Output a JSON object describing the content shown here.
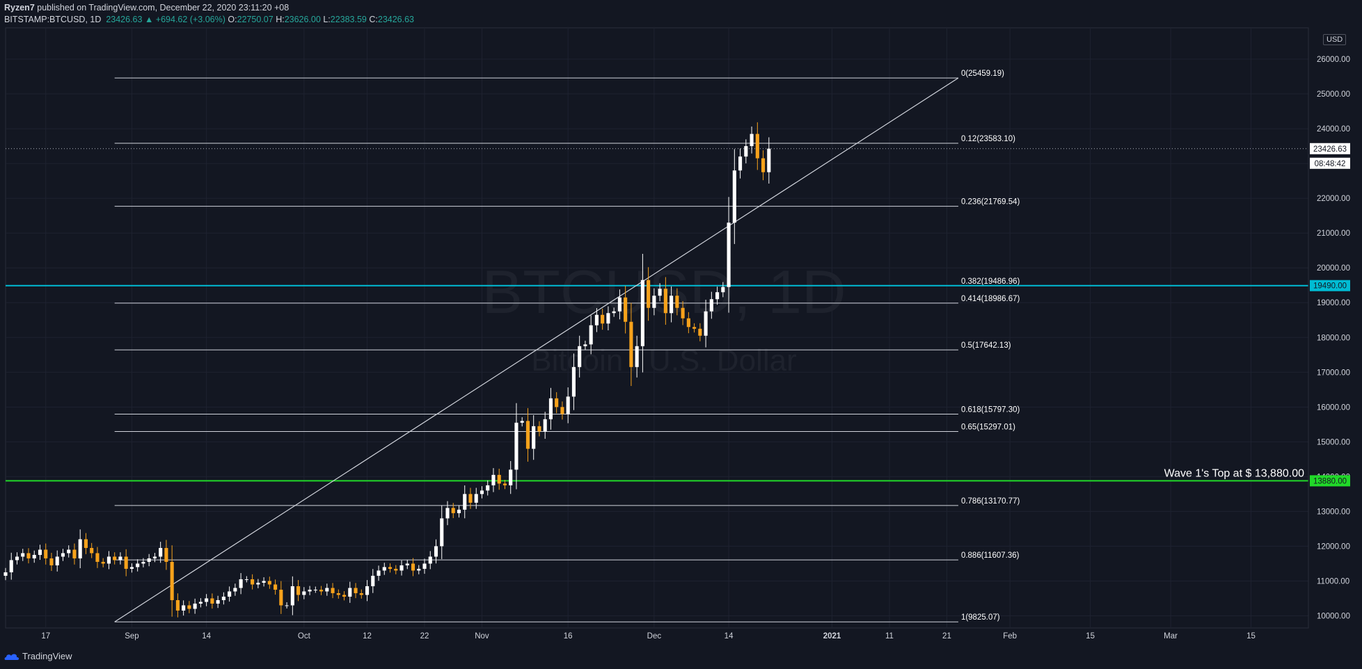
{
  "header": {
    "author": "Ryzen7",
    "published": " published on TradingView.com, December 22, 2020 23:11:20 +08",
    "symbol": "BITSTAMP:BTCUSD, 1D",
    "last": "23426.63",
    "change": "▲ +694.62 (+3.06%)",
    "o_label": "O:",
    "o": "22750.07",
    "h_label": "H:",
    "h": "23626.00",
    "l_label": "L:",
    "l": "22383.59",
    "c_label": "C:",
    "c": "23426.63"
  },
  "watermark": {
    "symbol": "BTCUSD, 1D",
    "name": "Bitcoin / U.S. Dollar"
  },
  "currency": "USD",
  "price_badges": {
    "last": "23426.63",
    "countdown": "08:48:42",
    "cyan_line": "19490.00",
    "green_line": "13880.00"
  },
  "annotation": "Wave 1's Top at $ 13,880.00",
  "footer": {
    "brand": "TradingView"
  },
  "colors": {
    "bg": "#131722",
    "up": "#ffffff",
    "down": "#f7a21b",
    "cyan": "#00bcd4",
    "green": "#21d929",
    "fib": "#d1d4dc"
  },
  "chart_data": {
    "type": "candlestick",
    "interval": "1D",
    "y_axis": {
      "ticks": [
        10000,
        11000,
        12000,
        13000,
        14000,
        15000,
        16000,
        17000,
        18000,
        19000,
        20000,
        21000,
        22000,
        23000,
        24000,
        25000,
        26000
      ],
      "tick_labels": [
        "10000.00",
        "11000.00",
        "12000.00",
        "13000.00",
        "14000.00",
        "15000.00",
        "16000.00",
        "17000.00",
        "18000.00",
        "19000.00",
        "20000.00",
        "21000.00",
        "22000.00",
        "23000.00",
        "24000.00",
        "25000.00",
        "26000.00"
      ],
      "range": [
        9650,
        26900
      ]
    },
    "x_axis": {
      "start_date": "2020-08-10",
      "end_date": "2021-03-25",
      "ticks": [
        {
          "label": "17",
          "date": "2020-08-17"
        },
        {
          "label": "Sep",
          "date": "2020-09-01"
        },
        {
          "label": "14",
          "date": "2020-09-14"
        },
        {
          "label": "Oct",
          "date": "2020-10-01"
        },
        {
          "label": "12",
          "date": "2020-10-12"
        },
        {
          "label": "22",
          "date": "2020-10-22"
        },
        {
          "label": "Nov",
          "date": "2020-11-01"
        },
        {
          "label": "16",
          "date": "2020-11-16"
        },
        {
          "label": "Dec",
          "date": "2020-12-01"
        },
        {
          "label": "14",
          "date": "2020-12-14"
        },
        {
          "label": "2021",
          "date": "2021-01-01"
        },
        {
          "label": "11",
          "date": "2021-01-11"
        },
        {
          "label": "21",
          "date": "2021-01-21"
        },
        {
          "label": "Feb",
          "date": "2021-02-01"
        },
        {
          "label": "15",
          "date": "2021-02-15"
        },
        {
          "label": "Mar",
          "date": "2021-03-01"
        },
        {
          "label": "15",
          "date": "2021-03-15"
        }
      ]
    },
    "closes": [
      11250,
      11600,
      11700,
      11800,
      11650,
      11750,
      11900,
      11650,
      11450,
      11700,
      11800,
      11900,
      11650,
      12200,
      11950,
      11800,
      11550,
      11500,
      11700,
      11600,
      11700,
      11350,
      11400,
      11500,
      11550,
      11650,
      11700,
      11950,
      11550,
      10450,
      10150,
      10300,
      10200,
      10350,
      10400,
      10500,
      10350,
      10450,
      10550,
      10700,
      10800,
      11050,
      11050,
      10900,
      10950,
      11000,
      10900,
      10750,
      10300,
      10300,
      10850,
      10600,
      10700,
      10750,
      10750,
      10700,
      10800,
      10650,
      10600,
      10550,
      10800,
      10650,
      10600,
      10850,
      11150,
      11300,
      11400,
      11350,
      11300,
      11450,
      11500,
      11300,
      11350,
      11500,
      11700,
      12000,
      12800,
      13100,
      12950,
      13050,
      13500,
      13250,
      13500,
      13600,
      13750,
      14050,
      13800,
      13750,
      14200,
      15550,
      15600,
      14800,
      15450,
      15300,
      15650,
      16250,
      16000,
      15800,
      16300,
      17150,
      17750,
      17800,
      18350,
      18650,
      18400,
      18700,
      18750,
      19150,
      18450,
      17150,
      17750,
      19650,
      18850,
      19200,
      19400,
      18700,
      19200,
      18850,
      18550,
      18300,
      18250,
      18050,
      18750,
      19100,
      19300,
      19450,
      21300,
      22800,
      23200,
      23500,
      23850,
      23150,
      22750,
      23426.63
    ],
    "fibonacci": [
      {
        "ratio": "0",
        "price": 25459.19,
        "label": "0(25459.19)"
      },
      {
        "ratio": "0.12",
        "price": 23583.1,
        "label": "0.12(23583.10)"
      },
      {
        "ratio": "0.236",
        "price": 21769.54,
        "label": "0.236(21769.54)"
      },
      {
        "ratio": "0.382",
        "price": 19486.96,
        "label": "0.382(19486.96)"
      },
      {
        "ratio": "0.414",
        "price": 18986.67,
        "label": "0.414(18986.67)"
      },
      {
        "ratio": "0.5",
        "price": 17642.13,
        "label": "0.5(17642.13)"
      },
      {
        "ratio": "0.618",
        "price": 15797.3,
        "label": "0.618(15797.30)"
      },
      {
        "ratio": "0.65",
        "price": 15297.01,
        "label": "0.65(15297.01)"
      },
      {
        "ratio": "0.786",
        "price": 13170.77,
        "label": "0.786(13170.77)"
      },
      {
        "ratio": "0.886",
        "price": 11607.36,
        "label": "0.886(11607.36)"
      },
      {
        "ratio": "1",
        "price": 9825.07,
        "label": "1(9825.07)"
      }
    ],
    "fib_start_date": "2020-08-29",
    "fib_end_date": "2021-01-23",
    "trendline": {
      "from": {
        "date": "2020-08-29",
        "price": 9825.07
      },
      "to": {
        "date": "2021-01-23",
        "price": 25459.19
      }
    },
    "horizontal_lines": [
      {
        "price": 19490.0,
        "color": "#00bcd4"
      },
      {
        "price": 13880.0,
        "color": "#21d929"
      }
    ],
    "last_price": 23426.63
  }
}
